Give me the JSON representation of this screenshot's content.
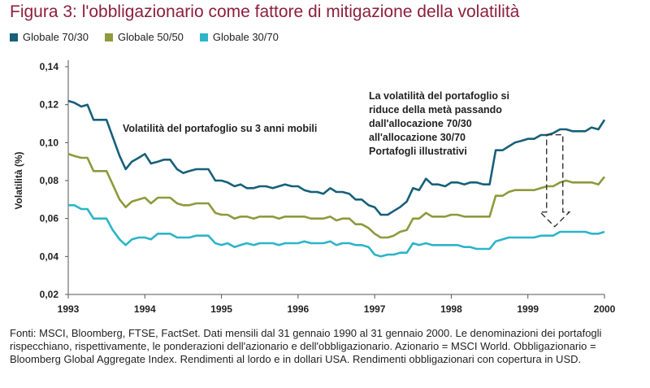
{
  "title": "Figura 3: l'obbligazionario come fattore di mitigazione della volatilità",
  "colors": {
    "title": "#8d1f3c",
    "s1": "#17607a",
    "s2": "#8e9a3c",
    "s3": "#2cb5c9",
    "axis": "#555555",
    "text": "#222222"
  },
  "footnote": "Fonti: MSCI, Bloomberg, FTSE, FactSet. Dati mensili dal 31 gennaio 1990 al 31 gennaio 2000. Le denominazioni dei portafogli rispecchiano, rispettivamente, le ponderazioni dell'azionario e dell'obbligazionario. Azionario = MSCI World. Obbligazionario = Bloomberg Global Aggregate Index. Rendimenti al lordo e in dollari USA. Rendimenti obbligazionari con copertura in USD.",
  "chart_data": {
    "type": "line",
    "title": "Figura 3: l'obbligazionario come fattore di mitigazione della volatilità",
    "ylabel": "Volatilità (%)",
    "xlabel": "",
    "xlim": [
      1993,
      2000
    ],
    "ylim": [
      0.02,
      0.14
    ],
    "xticks": [
      "1993",
      "1994",
      "1995",
      "1996",
      "1997",
      "1998",
      "1999",
      "2000"
    ],
    "yticks": [
      "0,02",
      "0,04",
      "0,06",
      "0,08",
      "0,10",
      "0,12",
      "0,14"
    ],
    "grid": false,
    "legend_position": "top-left",
    "annotations": [
      {
        "text": "Volatilità del portafoglio su 3 anni mobili"
      },
      {
        "text": [
          "La volatilità del portafoglio si",
          "riduce della metà passando",
          "dall'allocazione 70/30",
          "all'allocazione 30/70",
          "Portafogli illustrativi"
        ]
      }
    ],
    "arrow": {
      "x": 1999.35,
      "y_from": 0.081,
      "y_to": 0.054
    },
    "series": [
      {
        "name": "Globale 70/30",
        "color": "#17607a",
        "x": [
          1993.0,
          1993.08,
          1993.17,
          1993.25,
          1993.33,
          1993.42,
          1993.5,
          1993.58,
          1993.67,
          1993.75,
          1993.83,
          1993.92,
          1994.0,
          1994.08,
          1994.17,
          1994.25,
          1994.33,
          1994.42,
          1994.5,
          1994.58,
          1994.67,
          1994.75,
          1994.83,
          1994.92,
          1995.0,
          1995.08,
          1995.17,
          1995.25,
          1995.33,
          1995.42,
          1995.5,
          1995.58,
          1995.67,
          1995.75,
          1995.83,
          1995.92,
          1996.0,
          1996.08,
          1996.17,
          1996.25,
          1996.33,
          1996.42,
          1996.5,
          1996.58,
          1996.67,
          1996.75,
          1996.83,
          1996.92,
          1997.0,
          1997.08,
          1997.17,
          1997.25,
          1997.33,
          1997.42,
          1997.5,
          1997.58,
          1997.67,
          1997.75,
          1997.83,
          1997.92,
          1998.0,
          1998.08,
          1998.17,
          1998.25,
          1998.33,
          1998.42,
          1998.5,
          1998.58,
          1998.67,
          1998.75,
          1998.83,
          1998.92,
          1999.0,
          1999.08,
          1999.17,
          1999.25,
          1999.33,
          1999.42,
          1999.5,
          1999.58,
          1999.67,
          1999.75,
          1999.83,
          1999.92,
          2000.0
        ],
        "values": [
          0.122,
          0.121,
          0.119,
          0.12,
          0.112,
          0.112,
          0.112,
          0.103,
          0.093,
          0.086,
          0.09,
          0.092,
          0.094,
          0.089,
          0.09,
          0.091,
          0.091,
          0.086,
          0.084,
          0.085,
          0.086,
          0.086,
          0.086,
          0.08,
          0.08,
          0.079,
          0.077,
          0.078,
          0.076,
          0.076,
          0.077,
          0.077,
          0.076,
          0.077,
          0.078,
          0.077,
          0.077,
          0.075,
          0.074,
          0.074,
          0.073,
          0.076,
          0.074,
          0.074,
          0.073,
          0.07,
          0.07,
          0.067,
          0.066,
          0.062,
          0.062,
          0.064,
          0.066,
          0.069,
          0.076,
          0.075,
          0.081,
          0.078,
          0.078,
          0.077,
          0.079,
          0.079,
          0.078,
          0.079,
          0.079,
          0.078,
          0.078,
          0.096,
          0.096,
          0.098,
          0.1,
          0.101,
          0.102,
          0.102,
          0.104,
          0.104,
          0.105,
          0.107,
          0.107,
          0.106,
          0.106,
          0.106,
          0.108,
          0.107,
          0.112
        ]
      },
      {
        "name": "Globale 50/50",
        "color": "#8e9a3c",
        "x": [
          1993.0,
          1993.08,
          1993.17,
          1993.25,
          1993.33,
          1993.42,
          1993.5,
          1993.58,
          1993.67,
          1993.75,
          1993.83,
          1993.92,
          1994.0,
          1994.08,
          1994.17,
          1994.25,
          1994.33,
          1994.42,
          1994.5,
          1994.58,
          1994.67,
          1994.75,
          1994.83,
          1994.92,
          1995.0,
          1995.08,
          1995.17,
          1995.25,
          1995.33,
          1995.42,
          1995.5,
          1995.58,
          1995.67,
          1995.75,
          1995.83,
          1995.92,
          1996.0,
          1996.08,
          1996.17,
          1996.25,
          1996.33,
          1996.42,
          1996.5,
          1996.58,
          1996.67,
          1996.75,
          1996.83,
          1996.92,
          1997.0,
          1997.08,
          1997.17,
          1997.25,
          1997.33,
          1997.42,
          1997.5,
          1997.58,
          1997.67,
          1997.75,
          1997.83,
          1997.92,
          1998.0,
          1998.08,
          1998.17,
          1998.25,
          1998.33,
          1998.42,
          1998.5,
          1998.58,
          1998.67,
          1998.75,
          1998.83,
          1998.92,
          1999.0,
          1999.08,
          1999.17,
          1999.25,
          1999.33,
          1999.42,
          1999.5,
          1999.58,
          1999.67,
          1999.75,
          1999.83,
          1999.92,
          2000.0
        ],
        "values": [
          0.094,
          0.093,
          0.092,
          0.092,
          0.085,
          0.085,
          0.085,
          0.078,
          0.07,
          0.066,
          0.069,
          0.07,
          0.071,
          0.068,
          0.071,
          0.071,
          0.071,
          0.068,
          0.067,
          0.067,
          0.068,
          0.068,
          0.068,
          0.063,
          0.062,
          0.062,
          0.06,
          0.061,
          0.061,
          0.06,
          0.061,
          0.061,
          0.061,
          0.06,
          0.061,
          0.061,
          0.061,
          0.061,
          0.06,
          0.06,
          0.06,
          0.061,
          0.059,
          0.06,
          0.06,
          0.057,
          0.057,
          0.055,
          0.052,
          0.05,
          0.05,
          0.051,
          0.053,
          0.054,
          0.06,
          0.06,
          0.063,
          0.061,
          0.061,
          0.061,
          0.062,
          0.062,
          0.061,
          0.061,
          0.061,
          0.061,
          0.061,
          0.072,
          0.072,
          0.074,
          0.075,
          0.075,
          0.075,
          0.075,
          0.076,
          0.077,
          0.077,
          0.079,
          0.08,
          0.079,
          0.079,
          0.079,
          0.079,
          0.078,
          0.082
        ]
      },
      {
        "name": "Globale 30/70",
        "color": "#2cb5c9",
        "x": [
          1993.0,
          1993.08,
          1993.17,
          1993.25,
          1993.33,
          1993.42,
          1993.5,
          1993.58,
          1993.67,
          1993.75,
          1993.83,
          1993.92,
          1994.0,
          1994.08,
          1994.17,
          1994.25,
          1994.33,
          1994.42,
          1994.5,
          1994.58,
          1994.67,
          1994.75,
          1994.83,
          1994.92,
          1995.0,
          1995.08,
          1995.17,
          1995.25,
          1995.33,
          1995.42,
          1995.5,
          1995.58,
          1995.67,
          1995.75,
          1995.83,
          1995.92,
          1996.0,
          1996.08,
          1996.17,
          1996.25,
          1996.33,
          1996.42,
          1996.5,
          1996.58,
          1996.67,
          1996.75,
          1996.83,
          1996.92,
          1997.0,
          1997.08,
          1997.17,
          1997.25,
          1997.33,
          1997.42,
          1997.5,
          1997.58,
          1997.67,
          1997.75,
          1997.83,
          1997.92,
          1998.0,
          1998.08,
          1998.17,
          1998.25,
          1998.33,
          1998.42,
          1998.5,
          1998.58,
          1998.67,
          1998.75,
          1998.83,
          1998.92,
          1999.0,
          1999.08,
          1999.17,
          1999.25,
          1999.33,
          1999.42,
          1999.5,
          1999.58,
          1999.67,
          1999.75,
          1999.83,
          1999.92,
          2000.0
        ],
        "values": [
          0.067,
          0.067,
          0.065,
          0.065,
          0.06,
          0.06,
          0.06,
          0.054,
          0.049,
          0.046,
          0.049,
          0.05,
          0.05,
          0.049,
          0.052,
          0.052,
          0.052,
          0.05,
          0.05,
          0.05,
          0.051,
          0.051,
          0.051,
          0.047,
          0.046,
          0.047,
          0.045,
          0.046,
          0.047,
          0.046,
          0.047,
          0.047,
          0.047,
          0.046,
          0.047,
          0.047,
          0.047,
          0.048,
          0.047,
          0.047,
          0.047,
          0.048,
          0.046,
          0.047,
          0.047,
          0.046,
          0.046,
          0.045,
          0.041,
          0.04,
          0.041,
          0.041,
          0.042,
          0.042,
          0.047,
          0.046,
          0.047,
          0.046,
          0.046,
          0.046,
          0.046,
          0.046,
          0.045,
          0.045,
          0.044,
          0.044,
          0.044,
          0.048,
          0.049,
          0.05,
          0.05,
          0.05,
          0.05,
          0.05,
          0.051,
          0.051,
          0.051,
          0.053,
          0.053,
          0.053,
          0.053,
          0.053,
          0.052,
          0.052,
          0.053
        ]
      }
    ]
  }
}
